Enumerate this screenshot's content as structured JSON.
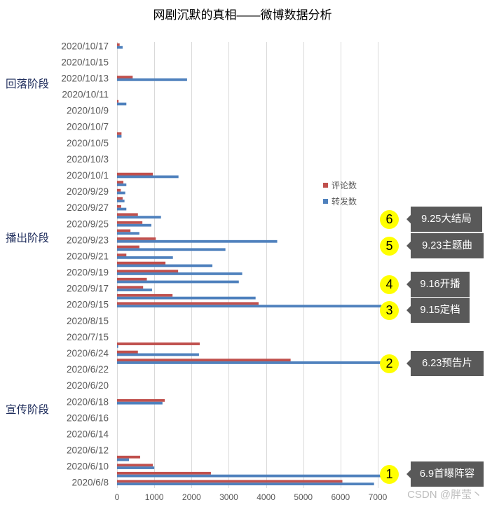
{
  "chart_data": {
    "type": "bar",
    "orientation": "horizontal",
    "title": "网剧沉默的真相——微博数据分析",
    "categories": [
      "2020/6/8",
      "",
      "2020/6/10",
      "",
      "2020/6/12",
      "",
      "2020/6/14",
      "",
      "2020/6/16",
      "",
      "2020/6/18",
      "",
      "2020/6/20",
      "",
      "2020/6/22",
      "",
      "2020/6/24",
      "",
      "2020/7/15",
      "",
      "2020/8/15",
      "",
      "2020/9/15",
      "",
      "2020/9/17",
      "",
      "2020/9/19",
      "",
      "2020/9/21",
      "",
      "2020/9/23",
      "",
      "2020/9/25",
      "",
      "2020/9/27",
      "",
      "2020/9/29",
      "",
      "2020/10/1",
      "",
      "2020/10/3",
      "",
      "2020/10/5",
      "",
      "2020/10/7",
      "",
      "2020/10/9",
      "",
      "2020/10/11",
      "",
      "2020/10/13",
      "",
      "2020/10/15",
      "",
      "2020/10/17"
    ],
    "series": [
      {
        "name": "评论数",
        "color": "#c0504d",
        "values": [
          6050,
          2520,
          960,
          620,
          0,
          0,
          0,
          0,
          0,
          0,
          1280,
          0,
          0,
          0,
          0,
          4660,
          560,
          2220,
          0,
          0,
          0,
          0,
          3800,
          1490,
          700,
          800,
          1640,
          1300,
          250,
          600,
          1040,
          360,
          680,
          560,
          110,
          150,
          100,
          170,
          960,
          0,
          0,
          0,
          0,
          120,
          0,
          0,
          0,
          40,
          0,
          0,
          420,
          0,
          0,
          0,
          70
        ]
      },
      {
        "name": "转发数",
        "color": "#4f81bd",
        "values": [
          6900,
          7100,
          1000,
          320,
          0,
          0,
          0,
          0,
          0,
          0,
          1220,
          0,
          0,
          0,
          0,
          7100,
          2200,
          30,
          0,
          0,
          0,
          0,
          7100,
          3720,
          940,
          3270,
          3360,
          2560,
          1500,
          2910,
          4300,
          600,
          920,
          1180,
          250,
          200,
          220,
          250,
          1650,
          0,
          0,
          0,
          0,
          120,
          0,
          0,
          0,
          250,
          0,
          0,
          1880,
          0,
          0,
          0,
          150
        ]
      }
    ],
    "xlim": [
      0,
      7000
    ],
    "xticks": [
      0,
      1000,
      2000,
      3000,
      4000,
      5000,
      6000,
      7000
    ],
    "grid": "vertical",
    "legend": "right"
  },
  "phases": [
    "回落阶段",
    "播出阶段",
    "宣传阶段"
  ],
  "annotation_style": {
    "badge_color": "#ffff00",
    "callout_color": "#595959"
  },
  "annotations": [
    {
      "number": "1",
      "text": "6.9首曝阵容"
    },
    {
      "number": "2",
      "text": "6.23预告片"
    },
    {
      "number": "3",
      "text": "9.15定档"
    },
    {
      "number": "4",
      "text": "9.16开播"
    },
    {
      "number": "5",
      "text": "9.23主题曲"
    },
    {
      "number": "6",
      "text": "9.25大结局"
    }
  ],
  "watermark": "CSDN @胖莹丶"
}
